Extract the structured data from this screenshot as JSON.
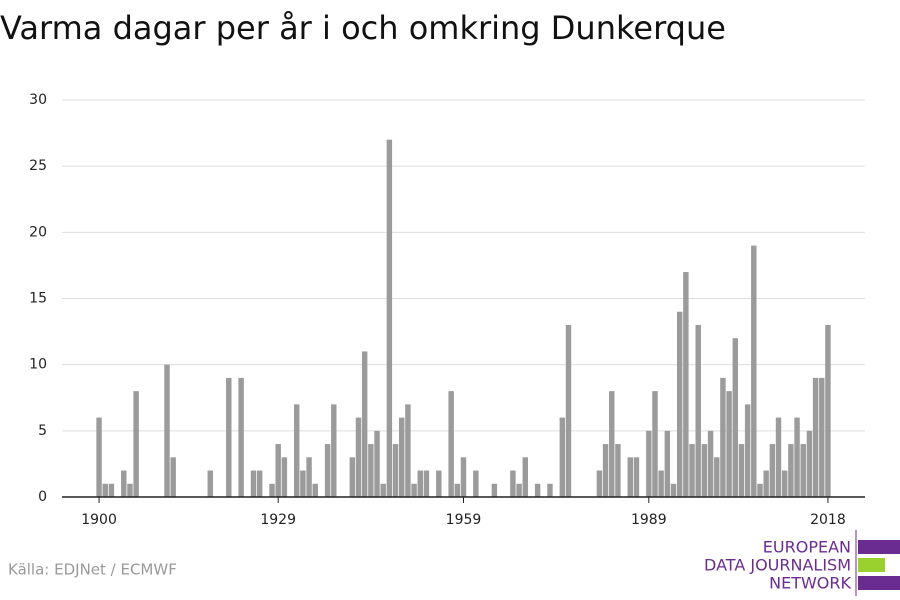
{
  "chart_data": {
    "type": "bar",
    "title": "Varma dagar per år i och omkring Dunkerque",
    "x": [
      1900,
      1901,
      1902,
      1903,
      1904,
      1905,
      1906,
      1907,
      1908,
      1909,
      1910,
      1911,
      1912,
      1913,
      1914,
      1915,
      1916,
      1917,
      1918,
      1919,
      1920,
      1921,
      1922,
      1923,
      1924,
      1925,
      1926,
      1927,
      1928,
      1929,
      1930,
      1931,
      1932,
      1933,
      1934,
      1935,
      1936,
      1937,
      1938,
      1939,
      1940,
      1941,
      1942,
      1943,
      1944,
      1945,
      1946,
      1947,
      1948,
      1949,
      1950,
      1951,
      1952,
      1953,
      1954,
      1955,
      1956,
      1957,
      1958,
      1959,
      1960,
      1961,
      1962,
      1963,
      1964,
      1965,
      1966,
      1967,
      1968,
      1969,
      1970,
      1971,
      1972,
      1973,
      1974,
      1975,
      1976,
      1977,
      1978,
      1979,
      1980,
      1981,
      1982,
      1983,
      1984,
      1985,
      1986,
      1987,
      1988,
      1989,
      1990,
      1991,
      1992,
      1993,
      1994,
      1995,
      1996,
      1997,
      1998,
      1999,
      2000,
      2001,
      2002,
      2003,
      2004,
      2005,
      2006,
      2007,
      2008,
      2009,
      2010,
      2011,
      2012,
      2013,
      2014,
      2015,
      2016,
      2017,
      2018
    ],
    "values": [
      6,
      1,
      1,
      0,
      2,
      1,
      8,
      0,
      0,
      0,
      0,
      10,
      3,
      0,
      0,
      0,
      0,
      0,
      2,
      0,
      0,
      9,
      0,
      9,
      0,
      2,
      2,
      0,
      1,
      4,
      3,
      0,
      7,
      2,
      3,
      1,
      0,
      4,
      7,
      0,
      0,
      3,
      6,
      11,
      4,
      5,
      1,
      27,
      4,
      6,
      7,
      1,
      2,
      2,
      0,
      2,
      0,
      8,
      1,
      3,
      0,
      2,
      0,
      0,
      1,
      0,
      0,
      2,
      1,
      3,
      0,
      1,
      0,
      1,
      0,
      6,
      13,
      0,
      0,
      0,
      0,
      2,
      4,
      8,
      4,
      0,
      3,
      3,
      0,
      5,
      8,
      2,
      5,
      1,
      14,
      17,
      4,
      13,
      4,
      5,
      3,
      9,
      8,
      12,
      4,
      7,
      19,
      1,
      2,
      4,
      6,
      2,
      4,
      6,
      4,
      5,
      9,
      9,
      13
    ],
    "color": "#9b9b9b",
    "xlim": [
      1894,
      2024
    ],
    "xticks": [
      1900,
      1929,
      1959,
      1989,
      2018
    ],
    "ylim": [
      0,
      30
    ],
    "yticks": [
      0,
      5,
      10,
      15,
      20,
      25,
      30
    ],
    "grid": true
  },
  "source": "Källa: EDJNet / ECMWF",
  "logo": [
    "EUROPEAN",
    "DATA JOURNALISM",
    "NETWORK"
  ]
}
